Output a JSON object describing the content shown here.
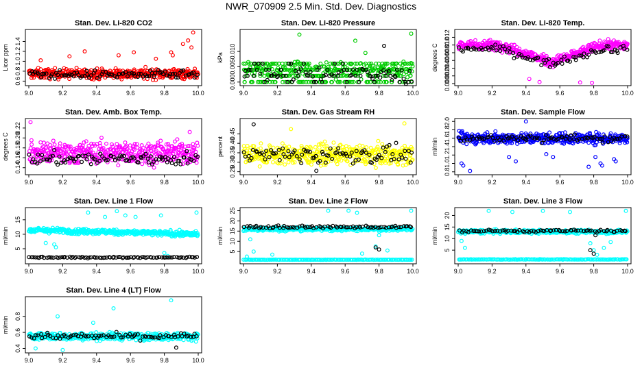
{
  "page": {
    "title": "NWR_070909  2.5 Min. Std. Dev. Diagnostics"
  },
  "chart_data": [
    {
      "type": "scatter",
      "title": "Stan. Dev. Li-820 CO2",
      "xlabel": "",
      "ylabel": "Licor ppm",
      "xlim": [
        9.0,
        10.0
      ],
      "ylim": [
        0.55,
        1.6
      ],
      "xticks": [
        9.0,
        9.2,
        9.4,
        9.6,
        9.8,
        10.0
      ],
      "xtick_labels": [
        "9.0",
        "9.2",
        "9.4",
        "9.6",
        "9.8",
        "10.0"
      ],
      "yticks": [
        0.6,
        0.8,
        1.0,
        1.2,
        1.4
      ],
      "ytick_labels": [
        "0.6",
        "0.8",
        "1.0",
        "1.2",
        "1.4"
      ],
      "series": [
        {
          "color": "#ff0000",
          "n": 420,
          "base": 0.75,
          "spread": 0.1,
          "extra": [
            [
              9.07,
              1.02
            ],
            [
              9.24,
              1.1
            ],
            [
              9.33,
              1.2
            ],
            [
              9.53,
              1.12
            ],
            [
              9.62,
              1.18
            ],
            [
              9.75,
              1.05
            ],
            [
              9.84,
              1.18
            ],
            [
              9.91,
              1.35
            ],
            [
              9.94,
              1.42
            ],
            [
              9.97,
              1.58
            ],
            [
              9.96,
              1.28
            ],
            [
              9.85,
              1.12
            ]
          ]
        },
        {
          "color": "#000000",
          "n": 90,
          "base": 0.73,
          "spread": 0.08,
          "extra": []
        }
      ]
    },
    {
      "type": "scatter",
      "title": "Stan. Dev. Li-820 Pressure",
      "xlabel": "",
      "ylabel": "kPa",
      "xlim": [
        9.0,
        10.0
      ],
      "ylim": [
        -0.0005,
        0.0165
      ],
      "xticks": [
        9.0,
        9.2,
        9.4,
        9.6,
        9.8,
        10.0
      ],
      "xtick_labels": [
        "9.0",
        "9.2",
        "9.4",
        "9.6",
        "9.8",
        "10.0"
      ],
      "yticks": [
        0.0,
        0.005,
        0.01
      ],
      "ytick_labels": [
        "0.000",
        "0.005",
        "0.010"
      ],
      "levels": [
        0.0,
        0.002,
        0.004,
        0.006
      ],
      "series": [
        {
          "color": "#00cc00",
          "n": 430,
          "base": 0.004,
          "spread": 0.0025,
          "extra": [
            [
              9.33,
              0.0155
            ],
            [
              9.66,
              0.0135
            ],
            [
              9.72,
              0.0095
            ],
            [
              9.99,
              0.0158
            ]
          ]
        },
        {
          "color": "#000000",
          "n": 95,
          "base": 0.003,
          "spread": 0.003,
          "extra": [
            [
              9.83,
              0.0118
            ]
          ]
        }
      ]
    },
    {
      "type": "scatter",
      "title": "Stan. Dev. Li-820 Temp.",
      "xlabel": "",
      "ylabel": "degrees C",
      "xlim": [
        9.0,
        10.0
      ],
      "ylim": [
        0.0,
        0.0135
      ],
      "xticks": [
        9.0,
        9.2,
        9.4,
        9.6,
        9.8,
        10.0
      ],
      "xtick_labels": [
        "9.0",
        "9.2",
        "9.4",
        "9.6",
        "9.8",
        "10.0"
      ],
      "yticks": [
        0.0,
        0.002,
        0.004,
        0.006,
        0.008,
        0.01,
        0.012
      ],
      "ytick_labels": [
        "0.000",
        "0.002",
        "0.004",
        "0.006",
        "0.008",
        "0.010",
        "0.012"
      ],
      "series": [
        {
          "color": "#ff00ff",
          "n": 430,
          "base": 0.01,
          "spread": 0.0012,
          "profile": "dip",
          "dip_center": 9.55,
          "dip_depth": 0.0045,
          "extra": [
            [
              9.48,
              0.0004
            ],
            [
              9.72,
              0.0003
            ],
            [
              9.79,
              0.0002
            ],
            [
              9.42,
              0.0012
            ]
          ]
        },
        {
          "color": "#000000",
          "n": 85,
          "base": 0.009,
          "spread": 0.001,
          "profile": "dip",
          "dip_center": 9.55,
          "dip_depth": 0.004,
          "extra": []
        }
      ]
    },
    {
      "type": "scatter",
      "title": "Stan. Dev. Amb. Box Temp.",
      "xlabel": "",
      "ylabel": "degrees C",
      "xlim": [
        9.0,
        10.0
      ],
      "ylim": [
        0.13,
        0.235
      ],
      "xticks": [
        9.0,
        9.2,
        9.4,
        9.6,
        9.8,
        10.0
      ],
      "xtick_labels": [
        "9.0",
        "9.2",
        "9.4",
        "9.6",
        "9.8",
        "10.0"
      ],
      "yticks": [
        0.14,
        0.16,
        0.18,
        0.2,
        0.22
      ],
      "ytick_labels": [
        "0.14",
        "0.16",
        "0.18",
        "0.20",
        "0.22"
      ],
      "series": [
        {
          "color": "#ff00ff",
          "n": 440,
          "base": 0.17,
          "spread": 0.022,
          "extra": [
            [
              9.01,
              0.232
            ],
            [
              9.95,
              0.212
            ]
          ]
        },
        {
          "color": "#000000",
          "n": 95,
          "base": 0.158,
          "spread": 0.014,
          "extra": []
        }
      ]
    },
    {
      "type": "scatter",
      "title": "Stan. Dev. Gas Stream RH",
      "xlabel": "",
      "ylabel": "percent",
      "xlim": [
        9.0,
        10.0
      ],
      "ylim": [
        0.245,
        0.52
      ],
      "xticks": [
        9.0,
        9.2,
        9.4,
        9.6,
        9.8,
        10.0
      ],
      "xtick_labels": [
        "9.0",
        "9.2",
        "9.4",
        "9.6",
        "9.8",
        "10.0"
      ],
      "yticks": [
        0.25,
        0.3,
        0.35,
        0.4,
        0.45
      ],
      "ytick_labels": [
        "0.25",
        "0.30",
        "0.35",
        "0.40",
        "0.45"
      ],
      "series": [
        {
          "color": "#ffff00",
          "n": 440,
          "base": 0.34,
          "spread": 0.05,
          "extra": [
            [
              9.95,
              0.505
            ],
            [
              9.28,
              0.475
            ]
          ]
        },
        {
          "color": "#000000",
          "n": 90,
          "base": 0.34,
          "spread": 0.045,
          "extra": [
            [
              9.06,
              0.5
            ],
            [
              9.43,
              0.255
            ]
          ]
        }
      ]
    },
    {
      "type": "scatter",
      "title": "Stan. Dev. Sample Flow",
      "xlabel": "",
      "ylabel": "ml/min",
      "xlim": [
        9.0,
        10.0
      ],
      "ylim": [
        0.78,
        2.02
      ],
      "xticks": [
        9.0,
        9.2,
        9.4,
        9.6,
        9.8,
        10.0
      ],
      "xtick_labels": [
        "9.0",
        "9.2",
        "9.4",
        "9.6",
        "9.8",
        "10.0"
      ],
      "yticks": [
        0.8,
        1.0,
        1.2,
        1.4,
        1.6,
        1.8,
        2.0
      ],
      "ytick_labels": [
        "0.8",
        "1.0",
        "1.2",
        "1.4",
        "1.6",
        "1.8",
        "2.0"
      ],
      "series": [
        {
          "color": "#0000ff",
          "n": 440,
          "base": 1.6,
          "spread": 0.13,
          "extra": [
            [
              9.02,
              1.0
            ],
            [
              9.03,
              0.95
            ],
            [
              9.07,
              0.82
            ],
            [
              9.3,
              1.15
            ],
            [
              9.34,
              1.05
            ],
            [
              9.52,
              1.22
            ],
            [
              9.56,
              1.15
            ],
            [
              9.77,
              0.92
            ],
            [
              9.81,
              1.15
            ],
            [
              9.84,
              1.0
            ],
            [
              9.85,
              0.95
            ],
            [
              9.92,
              1.1
            ],
            [
              9.93,
              1.05
            ],
            [
              9.4,
              2.0
            ]
          ]
        },
        {
          "color": "#000000",
          "n": 80,
          "base": 1.6,
          "spread": 0.08,
          "extra": []
        }
      ]
    },
    {
      "type": "scatter",
      "title": "Stan. Dev. Line 1 Flow",
      "xlabel": "",
      "ylabel": "ml/min",
      "xlim": [
        9.0,
        10.0
      ],
      "ylim": [
        0.5,
        18.5
      ],
      "xticks": [
        9.0,
        9.2,
        9.4,
        9.6,
        9.8,
        10.0
      ],
      "xtick_labels": [
        "9.0",
        "9.2",
        "9.4",
        "9.6",
        "9.8",
        "10.0"
      ],
      "yticks": [
        5,
        10,
        15
      ],
      "ytick_labels": [
        "5",
        "10",
        "15"
      ],
      "series": [
        {
          "color": "#00ffff",
          "n": 420,
          "base": 11.5,
          "spread": 0.9,
          "trend": -1.5,
          "extra": [
            [
              9.16,
              5.5
            ],
            [
              9.15,
              6.5
            ],
            [
              9.35,
              17.5
            ],
            [
              9.45,
              16.0
            ],
            [
              9.52,
              18.0
            ],
            [
              9.57,
              16.5
            ],
            [
              9.63,
              16.0
            ],
            [
              9.78,
              16.5
            ],
            [
              9.99,
              17.5
            ],
            [
              9.8,
              3.5
            ],
            [
              9.82,
              2.5
            ],
            [
              9.1,
              7.0
            ]
          ]
        },
        {
          "color": "#000000",
          "n": 90,
          "base": 2.0,
          "spread": 0.2,
          "extra": []
        }
      ]
    },
    {
      "type": "scatter",
      "title": "Stan. Dev. Line 2 Flow",
      "xlabel": "",
      "ylabel": "ml/min",
      "xlim": [
        9.0,
        10.0
      ],
      "ylim": [
        0.0,
        25.5
      ],
      "xticks": [
        9.0,
        9.2,
        9.4,
        9.6,
        9.8,
        10.0
      ],
      "xtick_labels": [
        "9.0",
        "9.2",
        "9.4",
        "9.6",
        "9.8",
        "10.0"
      ],
      "yticks": [
        5,
        10,
        15,
        20,
        25
      ],
      "ytick_labels": [
        "5",
        "10",
        "15",
        "20",
        "25"
      ],
      "levels": [
        1.0
      ],
      "series": [
        {
          "color": "#00ffff",
          "n": 380,
          "base": 16.0,
          "spread": 0.9,
          "extra": [
            [
              9.02,
              2.5
            ],
            [
              9.04,
              11.0
            ],
            [
              9.06,
              5.0
            ],
            [
              9.17,
              3.5
            ],
            [
              9.5,
              25.0
            ],
            [
              9.62,
              25.0
            ],
            [
              9.67,
              24.0
            ],
            [
              9.78,
              7.5
            ],
            [
              9.8,
              13.0
            ],
            [
              9.85,
              5.5
            ],
            [
              9.99,
              25.0
            ],
            [
              9.7,
              4.0
            ]
          ]
        },
        {
          "color": "#00ffff",
          "n": 150,
          "base": 1.0,
          "spread": 0.1,
          "extra": []
        },
        {
          "color": "#000000",
          "n": 80,
          "base": 17.0,
          "spread": 0.6,
          "extra": [
            [
              9.78,
              7.0
            ],
            [
              9.8,
              6.0
            ]
          ]
        }
      ]
    },
    {
      "type": "scatter",
      "title": "Stan. Dev. Line 3 Flow",
      "xlabel": "",
      "ylabel": "ml/min",
      "xlim": [
        9.0,
        10.0
      ],
      "ylim": [
        0.0,
        22.5
      ],
      "xticks": [
        9.0,
        9.2,
        9.4,
        9.6,
        9.8,
        10.0
      ],
      "xtick_labels": [
        "9.0",
        "9.2",
        "9.4",
        "9.6",
        "9.8",
        "10.0"
      ],
      "yticks": [
        5,
        10,
        15,
        20
      ],
      "ytick_labels": [
        "5",
        "10",
        "15",
        "20"
      ],
      "series": [
        {
          "color": "#00ffff",
          "n": 380,
          "base": 13.0,
          "spread": 0.8,
          "extra": [
            [
              9.02,
              9.0
            ],
            [
              9.04,
              6.0
            ],
            [
              9.18,
              22.0
            ],
            [
              9.32,
              21.5
            ],
            [
              9.5,
              22.0
            ],
            [
              9.66,
              21.5
            ],
            [
              9.78,
              8.0
            ],
            [
              9.8,
              5.0
            ],
            [
              9.82,
              3.0
            ],
            [
              9.86,
              6.0
            ],
            [
              9.99,
              22.0
            ],
            [
              9.9,
              8.5
            ]
          ]
        },
        {
          "color": "#00ffff",
          "n": 150,
          "base": 1.0,
          "spread": 0.1,
          "extra": []
        },
        {
          "color": "#000000",
          "n": 75,
          "base": 13.3,
          "spread": 0.5,
          "extra": [
            [
              9.78,
              5.0
            ],
            [
              9.8,
              3.5
            ],
            [
              9.81,
              11.5
            ]
          ]
        }
      ]
    },
    {
      "type": "scatter",
      "title": "Stan. Dev. Line 4 (LT) Flow",
      "xlabel": "",
      "ylabel": "ml/min",
      "xlim": [
        9.0,
        10.0
      ],
      "ylim": [
        0.37,
        1.02
      ],
      "xticks": [
        9.0,
        9.2,
        9.4,
        9.6,
        9.8,
        10.0
      ],
      "xtick_labels": [
        "9.0",
        "9.2",
        "9.4",
        "9.6",
        "9.8",
        "10.0"
      ],
      "yticks": [
        0.4,
        0.6,
        0.8
      ],
      "ytick_labels": [
        "0.4",
        "0.6",
        "0.8"
      ],
      "series": [
        {
          "color": "#00ffff",
          "n": 420,
          "base": 0.55,
          "spread": 0.045,
          "extra": [
            [
              9.17,
              0.8
            ],
            [
              9.38,
              0.72
            ],
            [
              9.5,
              0.9
            ],
            [
              9.84,
              1.0
            ],
            [
              9.04,
              0.4
            ],
            [
              9.2,
              0.38
            ]
          ]
        },
        {
          "color": "#000000",
          "n": 80,
          "base": 0.55,
          "spread": 0.04,
          "extra": [
            [
              9.87,
              0.41
            ]
          ]
        }
      ]
    }
  ]
}
